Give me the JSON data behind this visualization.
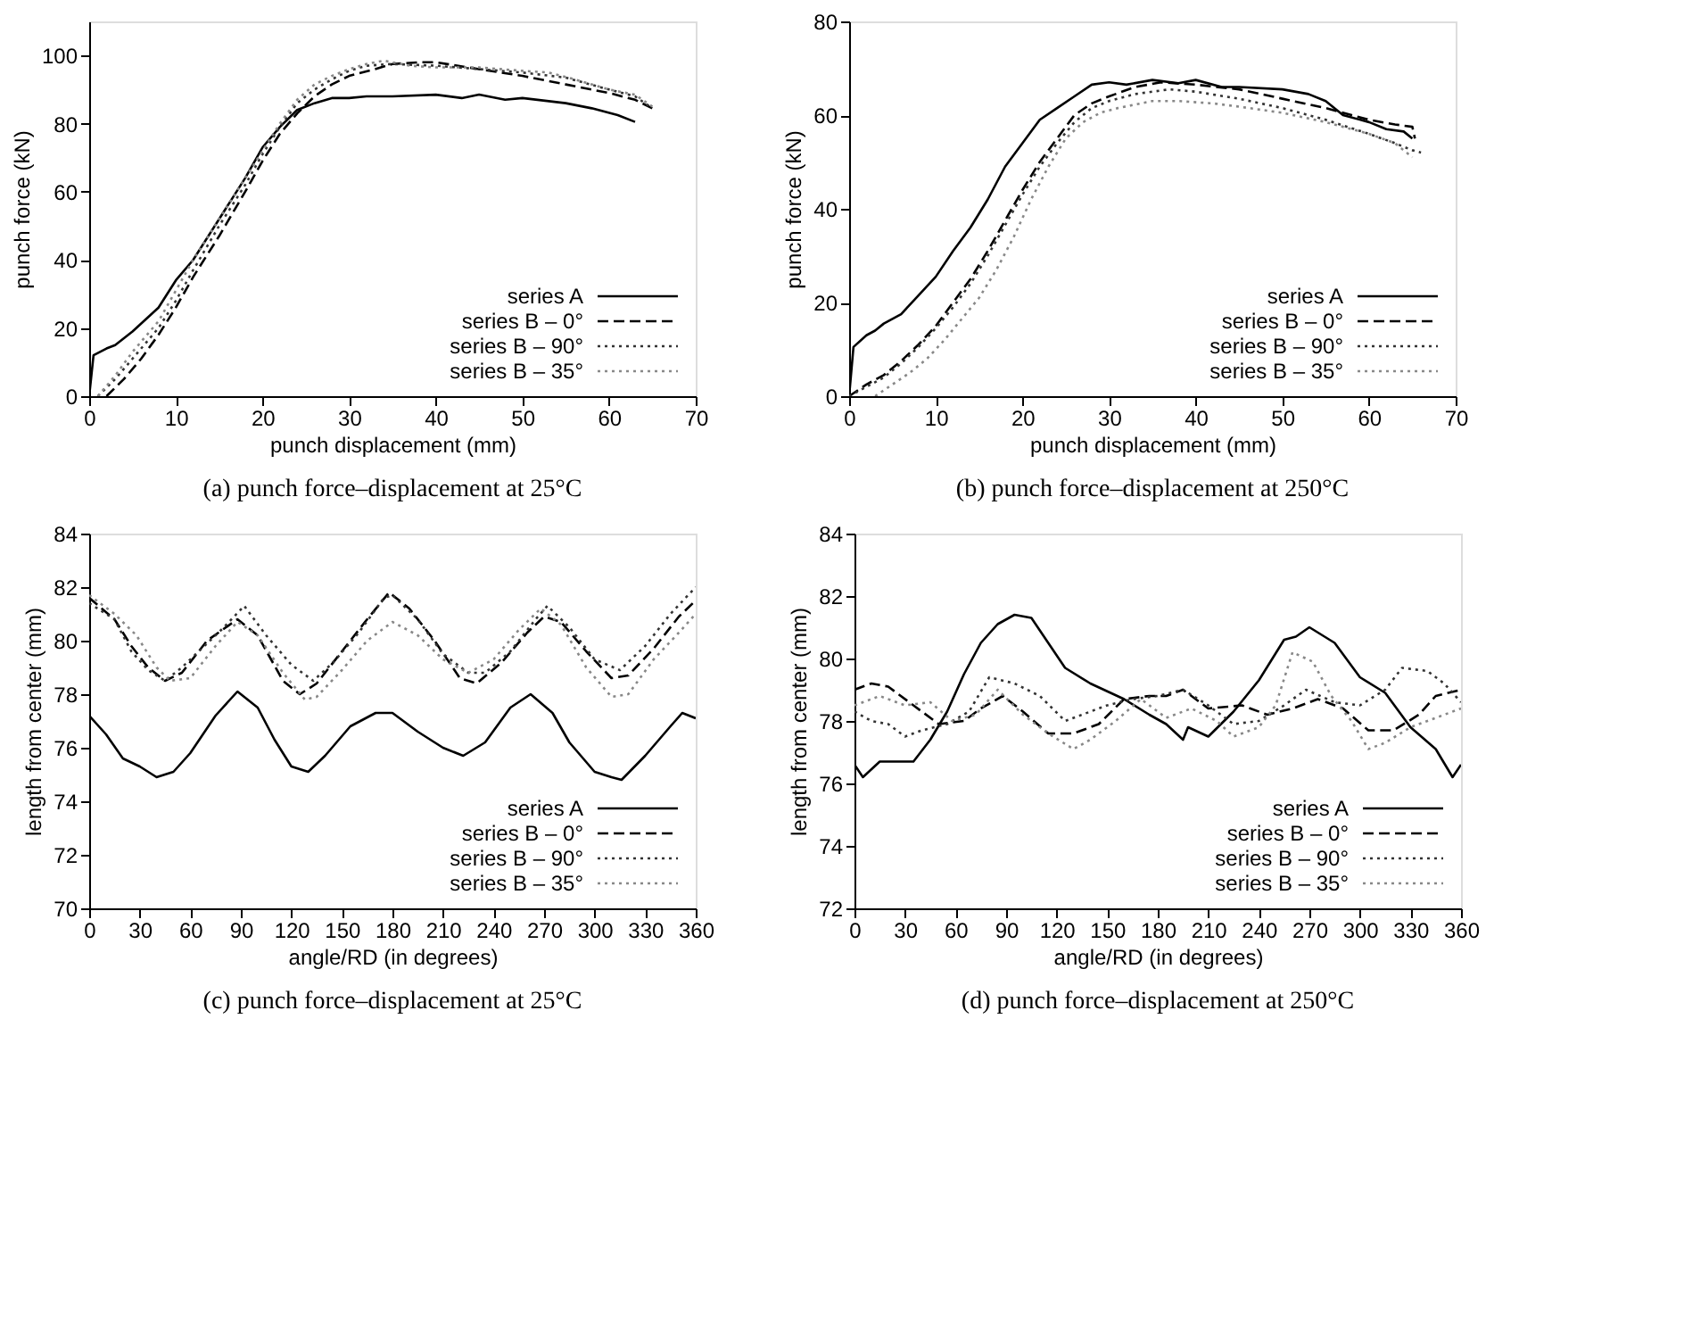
{
  "chart_data": [
    {
      "type": "line",
      "title": "(a) punch force–displacement at 25°C",
      "xlabel": "punch displacement (mm)",
      "ylabel": "punch force (kN)",
      "xlim": [
        0,
        70
      ],
      "xticks": [
        0,
        10,
        20,
        30,
        40,
        50,
        60,
        70
      ],
      "ylim": [
        0,
        110
      ],
      "yticks": [
        0,
        20,
        40,
        60,
        80,
        100
      ],
      "grid": false,
      "legend": "bottom right",
      "series": [
        {
          "name": "series A",
          "color": "#000000",
          "line_style": "solid",
          "x": [
            0,
            0.5,
            2,
            3,
            5,
            8,
            10,
            12,
            15,
            18,
            20,
            22,
            24,
            26,
            28,
            30,
            32,
            35,
            40,
            43,
            45,
            48,
            50,
            55,
            58,
            61,
            63
          ],
          "values": [
            0,
            12,
            14,
            15,
            19,
            26,
            34,
            40,
            52,
            64,
            73,
            79,
            84,
            86,
            87.5,
            87.5,
            88,
            88,
            88.5,
            87.5,
            88.5,
            87,
            87.5,
            86,
            84.5,
            82.5,
            80.5
          ]
        },
        {
          "name": "series B –   0°",
          "color": "#000000",
          "line_style": "dashed",
          "x": [
            2,
            4,
            6,
            8,
            10,
            12,
            15,
            18,
            20,
            22,
            24,
            26,
            28,
            30,
            33,
            35,
            38,
            40,
            45,
            50,
            55,
            60,
            63,
            65
          ],
          "values": [
            0,
            5,
            11,
            18,
            26,
            35,
            47,
            60,
            69,
            77,
            83,
            88,
            91.5,
            94,
            96,
            97.5,
            98,
            98,
            96,
            94,
            91.5,
            89,
            87,
            84.5
          ]
        },
        {
          "name": "series B – 90°",
          "color": "#333333",
          "line_style": "dotted",
          "x": [
            1,
            3,
            5,
            8,
            10,
            12,
            15,
            18,
            20,
            22,
            24,
            26,
            28,
            30,
            32,
            35,
            40,
            45,
            50,
            55,
            60,
            63,
            65
          ],
          "values": [
            0,
            5,
            11,
            20,
            28,
            37,
            50,
            62,
            71,
            79,
            86,
            90,
            93,
            95.5,
            97,
            97.5,
            97,
            96,
            95,
            93.5,
            90,
            88,
            84.5
          ]
        },
        {
          "name": "series B – 35°",
          "color": "#888888",
          "line_style": "dotted",
          "x": [
            1,
            3,
            5,
            8,
            10,
            12,
            15,
            18,
            20,
            22,
            24,
            26,
            28,
            30,
            32,
            34,
            37,
            40,
            45,
            50,
            53,
            56,
            60,
            63,
            65
          ],
          "values": [
            0,
            6,
            13,
            22,
            31,
            40,
            52,
            64,
            72,
            80,
            87,
            91.5,
            94,
            96,
            97.5,
            98.5,
            97,
            96.5,
            96.5,
            95.5,
            95,
            93,
            90,
            88.5,
            85
          ]
        }
      ]
    },
    {
      "type": "line",
      "title": "(b) punch force–displacement at 250°C",
      "xlabel": "punch displacement (mm)",
      "ylabel": "punch force (kN)",
      "xlim": [
        0,
        70
      ],
      "xticks": [
        0,
        10,
        20,
        30,
        40,
        50,
        60,
        70
      ],
      "ylim": [
        0,
        80
      ],
      "yticks": [
        0,
        20,
        40,
        60,
        80
      ],
      "grid": false,
      "legend": "bottom right",
      "series": [
        {
          "name": "series A",
          "color": "#000000",
          "line_style": "solid",
          "x": [
            0,
            0.5,
            2,
            3,
            4,
            6,
            8,
            10,
            12,
            14,
            16,
            18,
            20,
            22,
            24,
            26,
            28,
            30,
            32,
            35,
            38,
            40,
            43,
            45,
            50,
            53,
            55,
            57,
            60,
            62,
            64,
            65
          ],
          "values": [
            0,
            10.5,
            13,
            14,
            15.5,
            17.5,
            21.5,
            25.5,
            31,
            36,
            42,
            49,
            54,
            59,
            61.5,
            64,
            66.5,
            67,
            66.5,
            67.5,
            66.8,
            67.5,
            66,
            66,
            65.5,
            64.5,
            63,
            60,
            58.5,
            57,
            56.5,
            55
          ]
        },
        {
          "name": "series B –   0°",
          "color": "#000000",
          "line_style": "dashed",
          "x": [
            0,
            2,
            4,
            6,
            8,
            10,
            12,
            14,
            16,
            18,
            20,
            22,
            24,
            26,
            28,
            30,
            33,
            36,
            40,
            45,
            50,
            55,
            58,
            60,
            63,
            65,
            65.3
          ],
          "values": [
            0,
            2.5,
            4.5,
            7.5,
            11,
            15,
            20,
            25,
            31,
            37.5,
            44,
            50,
            55,
            60,
            62.5,
            64,
            66,
            67,
            66.5,
            65.5,
            63.5,
            61.5,
            60,
            59,
            58,
            57.5,
            55
          ]
        },
        {
          "name": "series B – 90°",
          "color": "#333333",
          "line_style": "dotted",
          "x": [
            0,
            2,
            4,
            6,
            8,
            10,
            12,
            14,
            16,
            18,
            20,
            22,
            24,
            26,
            28,
            30,
            33,
            37,
            40,
            45,
            50,
            55,
            60,
            63,
            65,
            66
          ],
          "values": [
            0,
            2,
            4,
            7,
            10.5,
            14.5,
            19,
            24,
            30,
            36.5,
            43,
            49,
            54,
            58.5,
            61.5,
            63,
            64.5,
            65.5,
            65,
            63.5,
            61.5,
            59,
            56,
            54,
            52.5,
            52
          ]
        },
        {
          "name": "series B – 35°",
          "color": "#888888",
          "line_style": "dotted",
          "x": [
            3,
            5,
            7,
            9,
            11,
            13,
            15,
            17,
            19,
            21,
            23,
            25,
            27,
            29,
            31,
            35,
            38,
            42,
            45,
            50,
            55,
            60,
            63,
            65
          ],
          "values": [
            0,
            2.5,
            5,
            8,
            12,
            16.5,
            21,
            27,
            34,
            42,
            49,
            55,
            58.5,
            60.5,
            61.5,
            63,
            63,
            62.5,
            61.8,
            60.5,
            58.5,
            56,
            54,
            51
          ]
        }
      ]
    },
    {
      "type": "line",
      "title": "(c) punch force–displacement at 25°C",
      "xlabel": "angle/RD (in degrees)",
      "ylabel": "length from center (mm)",
      "xlim": [
        0,
        360
      ],
      "xticks": [
        0,
        30,
        60,
        90,
        120,
        150,
        180,
        210,
        240,
        270,
        300,
        330,
        360
      ],
      "ylim": [
        70,
        84
      ],
      "yticks": [
        70,
        72,
        74,
        76,
        78,
        80,
        82,
        84
      ],
      "grid": false,
      "legend": "bottom right",
      "series": [
        {
          "name": "series A",
          "color": "#000000",
          "line_style": "solid",
          "x": [
            0,
            10,
            20,
            30,
            40,
            50,
            60,
            75,
            88,
            100,
            110,
            120,
            130,
            140,
            155,
            170,
            180,
            195,
            210,
            222,
            235,
            250,
            262,
            275,
            285,
            300,
            310,
            316,
            330,
            345,
            352,
            360
          ],
          "values": [
            77.2,
            76.5,
            75.6,
            75.3,
            74.9,
            75.1,
            75.8,
            77.2,
            78.1,
            77.5,
            76.3,
            75.3,
            75.1,
            75.7,
            76.8,
            77.3,
            77.3,
            76.6,
            76.0,
            75.7,
            76.2,
            77.5,
            78.0,
            77.3,
            76.2,
            75.1,
            74.9,
            74.8,
            75.7,
            76.8,
            77.3,
            77.1
          ]
        },
        {
          "name": "series B –   0°",
          "color": "#000000",
          "line_style": "dashed",
          "x": [
            0,
            15,
            25,
            35,
            45,
            55,
            70,
            88,
            100,
            115,
            125,
            135,
            150,
            165,
            178,
            190,
            205,
            220,
            230,
            245,
            260,
            270,
            280,
            295,
            310,
            320,
            335,
            350,
            360
          ],
          "values": [
            81.6,
            80.8,
            79.8,
            79.0,
            78.5,
            78.8,
            80.0,
            80.8,
            80.2,
            78.5,
            78.0,
            78.4,
            79.6,
            80.8,
            81.8,
            81.2,
            80.0,
            78.6,
            78.4,
            79.2,
            80.3,
            80.9,
            80.7,
            79.6,
            78.6,
            78.7,
            79.7,
            80.9,
            81.5
          ]
        },
        {
          "name": "series B – 90°",
          "color": "#333333",
          "line_style": "dotted",
          "x": [
            0,
            15,
            25,
            35,
            45,
            55,
            70,
            80,
            92,
            105,
            120,
            133,
            145,
            160,
            175,
            180,
            195,
            210,
            225,
            235,
            250,
            265,
            272,
            285,
            300,
            315,
            330,
            345,
            360
          ],
          "values": [
            81.4,
            80.8,
            79.6,
            78.9,
            78.5,
            79.0,
            79.9,
            80.5,
            81.3,
            80.2,
            79.1,
            78.5,
            79.2,
            80.3,
            81.6,
            81.7,
            80.8,
            79.5,
            78.8,
            78.8,
            79.6,
            80.8,
            81.3,
            80.5,
            79.3,
            78.9,
            79.8,
            81.0,
            82.0
          ]
        },
        {
          "name": "series B – 35°",
          "color": "#888888",
          "line_style": "dotted",
          "x": [
            0,
            15,
            28,
            40,
            48,
            60,
            75,
            88,
            100,
            115,
            128,
            135,
            150,
            165,
            180,
            195,
            210,
            225,
            240,
            255,
            268,
            280,
            295,
            310,
            320,
            335,
            350,
            360
          ],
          "values": [
            81.7,
            81.0,
            80.2,
            79.0,
            78.5,
            78.6,
            79.8,
            80.7,
            80.2,
            78.8,
            77.8,
            77.9,
            78.9,
            80.0,
            80.7,
            80.2,
            79.3,
            78.8,
            79.3,
            80.4,
            81.2,
            80.6,
            79.0,
            77.9,
            78.0,
            79.3,
            80.3,
            81.0
          ]
        }
      ]
    },
    {
      "type": "line",
      "title": "(d) punch force–displacement at 250°C",
      "xlabel": "angle/RD (in degrees)",
      "ylabel": "length from center (mm)",
      "xlim": [
        0,
        360
      ],
      "xticks": [
        0,
        30,
        60,
        90,
        120,
        150,
        180,
        210,
        240,
        270,
        300,
        330,
        360
      ],
      "ylim": [
        72,
        84
      ],
      "yticks": [
        72,
        74,
        76,
        78,
        80,
        82,
        84
      ],
      "grid": false,
      "legend": "bottom right",
      "series": [
        {
          "name": "series A",
          "color": "#000000",
          "line_style": "solid",
          "x": [
            0,
            5,
            15,
            35,
            45,
            55,
            65,
            75,
            85,
            95,
            105,
            115,
            125,
            140,
            160,
            175,
            185,
            195,
            198,
            210,
            225,
            240,
            255,
            262,
            270,
            285,
            300,
            315,
            330,
            345,
            355,
            360
          ],
          "values": [
            76.6,
            76.2,
            76.7,
            76.7,
            77.4,
            78.3,
            79.5,
            80.5,
            81.1,
            81.4,
            81.3,
            80.5,
            79.7,
            79.2,
            78.7,
            78.2,
            77.9,
            77.4,
            77.8,
            77.5,
            78.3,
            79.3,
            80.6,
            80.7,
            81.0,
            80.5,
            79.4,
            78.9,
            77.8,
            77.1,
            76.2,
            76.6
          ]
        },
        {
          "name": "series B –   0°",
          "color": "#000000",
          "line_style": "dashed",
          "x": [
            0,
            10,
            20,
            35,
            50,
            65,
            75,
            88,
            100,
            115,
            130,
            145,
            160,
            175,
            185,
            195,
            210,
            230,
            245,
            260,
            275,
            290,
            305,
            320,
            335,
            345,
            360
          ],
          "values": [
            79.0,
            79.2,
            79.1,
            78.5,
            77.9,
            78.0,
            78.4,
            78.8,
            78.3,
            77.6,
            77.6,
            77.9,
            78.7,
            78.8,
            78.8,
            79.0,
            78.4,
            78.5,
            78.2,
            78.4,
            78.7,
            78.4,
            77.7,
            77.7,
            78.2,
            78.8,
            79.0
          ]
        },
        {
          "name": "series B – 90°",
          "color": "#333333",
          "line_style": "dotted",
          "x": [
            0,
            10,
            20,
            30,
            40,
            55,
            68,
            80,
            95,
            110,
            125,
            135,
            150,
            165,
            180,
            195,
            210,
            225,
            240,
            255,
            268,
            285,
            300,
            315,
            325,
            340,
            350,
            360
          ],
          "values": [
            78.3,
            78.0,
            77.9,
            77.5,
            77.7,
            77.9,
            78.3,
            79.4,
            79.2,
            78.8,
            78.0,
            78.2,
            78.5,
            78.7,
            78.8,
            79.0,
            78.5,
            77.9,
            78.0,
            78.5,
            79.0,
            78.6,
            78.5,
            79.0,
            79.7,
            79.6,
            79.2,
            78.6
          ]
        },
        {
          "name": "series B – 35°",
          "color": "#888888",
          "line_style": "dotted",
          "x": [
            0,
            15,
            30,
            45,
            58,
            72,
            85,
            100,
            115,
            130,
            140,
            155,
            170,
            185,
            200,
            215,
            225,
            240,
            250,
            260,
            272,
            283,
            295,
            305,
            315,
            330,
            345,
            360
          ],
          "values": [
            78.5,
            78.8,
            78.5,
            78.6,
            78.0,
            78.2,
            79.0,
            78.2,
            77.6,
            77.1,
            77.4,
            78.0,
            78.7,
            78.1,
            78.4,
            78.0,
            77.5,
            77.8,
            78.5,
            80.2,
            79.9,
            78.8,
            78.0,
            77.1,
            77.3,
            77.8,
            78.1,
            78.4
          ]
        }
      ]
    }
  ]
}
